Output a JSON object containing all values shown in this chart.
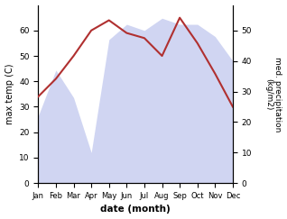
{
  "months": [
    "Jan",
    "Feb",
    "Mar",
    "Apr",
    "May",
    "Jun",
    "Jul",
    "Aug",
    "Sep",
    "Oct",
    "Nov",
    "Dec"
  ],
  "month_indices": [
    0,
    1,
    2,
    3,
    4,
    5,
    6,
    7,
    8,
    9,
    10,
    11
  ],
  "max_temp": [
    34,
    41,
    50,
    60,
    64,
    59,
    57,
    50,
    65,
    55,
    43,
    30
  ],
  "precipitation": [
    22,
    37,
    28,
    10,
    47,
    52,
    50,
    54,
    52,
    52,
    48,
    40
  ],
  "temp_color": "#b03030",
  "precip_fill_color": "#aab4e8",
  "temp_ylim": [
    0,
    70
  ],
  "precip_ylim": [
    0,
    58.33
  ],
  "temp_yticks": [
    0,
    10,
    20,
    30,
    40,
    50,
    60
  ],
  "precip_yticks": [
    0,
    10,
    20,
    30,
    40,
    50
  ],
  "xlabel": "date (month)",
  "ylabel_left": "max temp (C)",
  "ylabel_right": "med. precipitation\n(kg/m2)",
  "figsize": [
    3.18,
    2.43
  ],
  "dpi": 100
}
